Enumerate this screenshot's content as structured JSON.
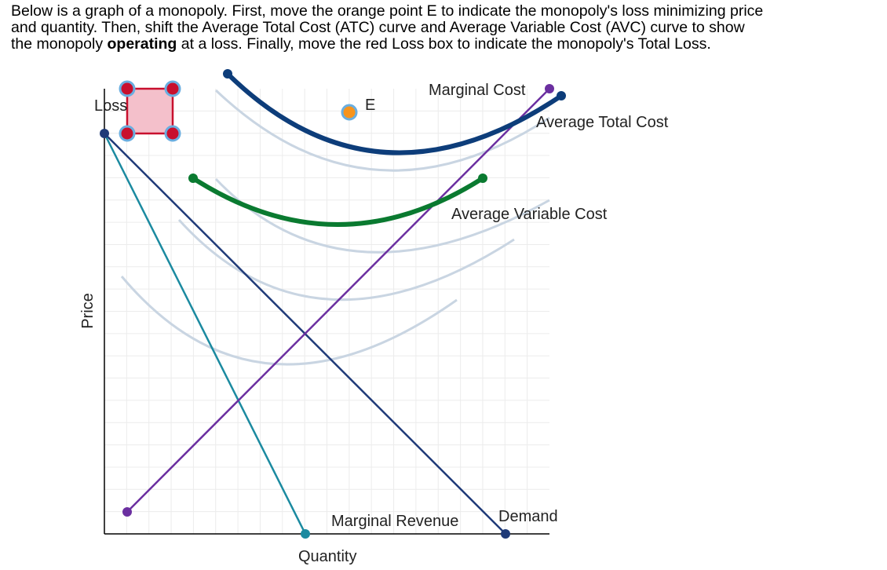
{
  "instructions": {
    "line1": "Below is a graph of a monopoly. First, move the orange point E to indicate the monopoly's loss minimizing price",
    "line2": "and quantity. Then, shift the Average Total Cost (ATC) curve and Average Variable Cost (AVC) curve to show",
    "line3_start": "the monopoly",
    "line3_bold": "operating",
    "line3_end": "at a loss. Finally, move the red Loss box to indicate the monopoly's Total Loss."
  },
  "graph": {
    "loss_label": "Loss",
    "point_label": "E",
    "marginal_cost": "Marginal Cost",
    "average_total_cost": "Average Total Cost",
    "average_variable_cost": "Average Variable Cost",
    "marginal_revenue": "Marginal Revenue",
    "demand": "Demand",
    "x_axis_label": "Quantity",
    "y_axis_label": "Price"
  }
}
